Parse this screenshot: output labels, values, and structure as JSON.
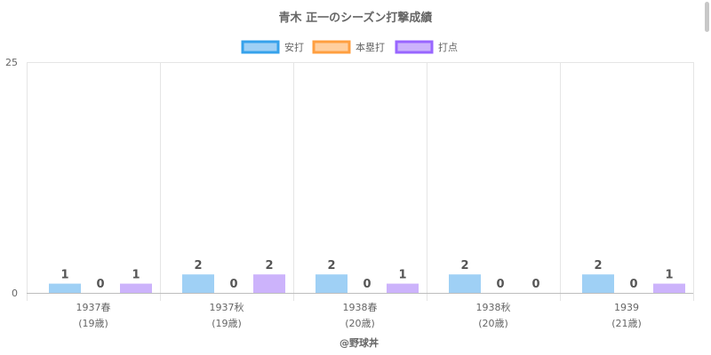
{
  "chart_data": {
    "type": "bar",
    "title": "青木 正一のシーズン打撃成績",
    "categories": [
      {
        "season": "1937春",
        "age": "(19歳)"
      },
      {
        "season": "1937秋",
        "age": "(19歳)"
      },
      {
        "season": "1938春",
        "age": "(20歳)"
      },
      {
        "season": "1938秋",
        "age": "(20歳)"
      },
      {
        "season": "1939",
        "age": "(21歳)"
      }
    ],
    "series": [
      {
        "name": "安打",
        "values": [
          1,
          2,
          2,
          2,
          2
        ],
        "fill": "#9fd0f5",
        "border": "#36a2eb"
      },
      {
        "name": "本塁打",
        "values": [
          0,
          0,
          0,
          0,
          0
        ],
        "fill": "#ffcf9f",
        "border": "#ff9f40"
      },
      {
        "name": "打点",
        "values": [
          1,
          2,
          1,
          0,
          1
        ],
        "fill": "#ccb3fb",
        "border": "#9966ff"
      }
    ],
    "ylim": [
      0,
      25
    ],
    "yticks": [
      "0",
      "25"
    ],
    "grid": true,
    "legend_position": "top",
    "credit": "@野球丼"
  }
}
